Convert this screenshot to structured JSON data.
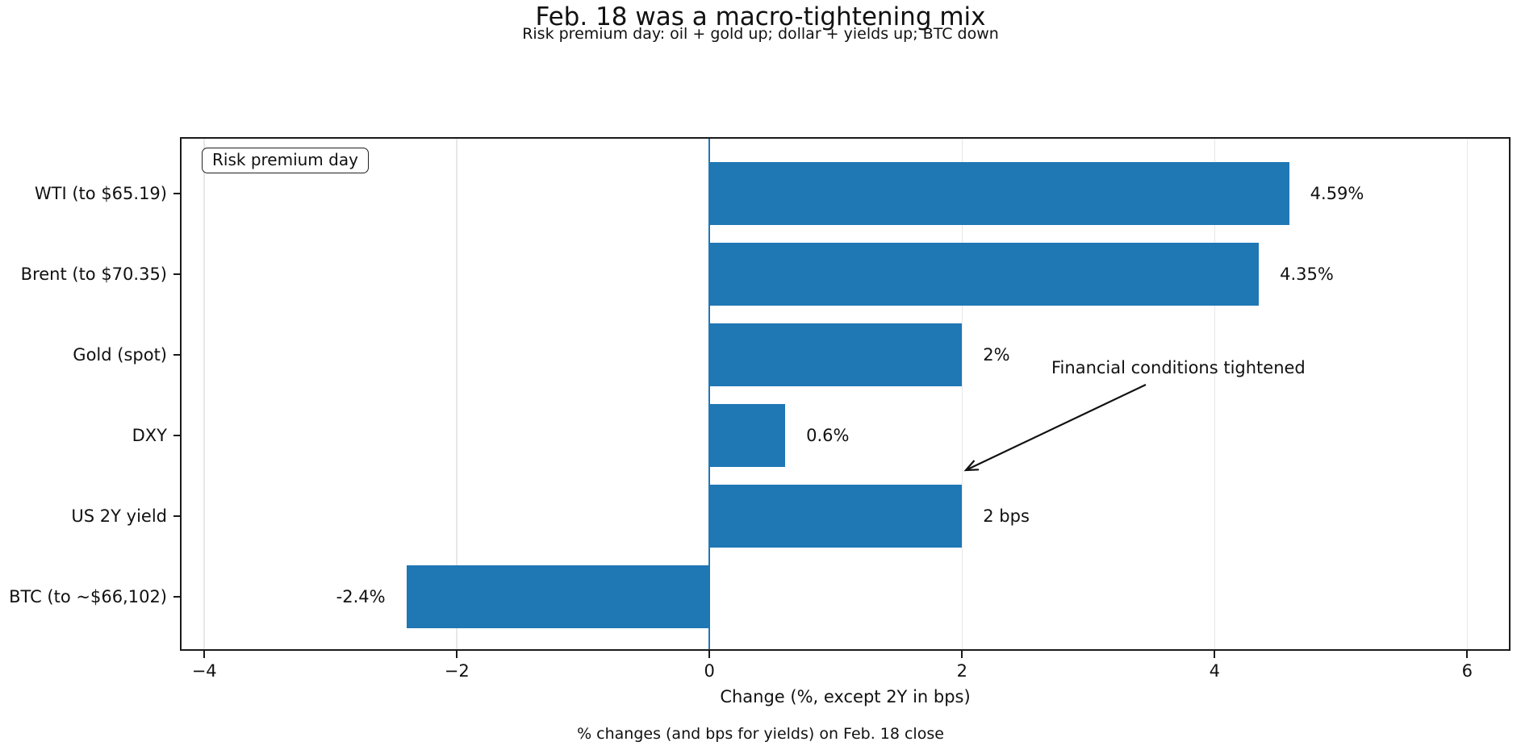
{
  "title": "Feb. 18 was a macro-tightening mix",
  "subtitle": "Risk premium day: oil + gold up; dollar + yields up; BTC down",
  "legend": {
    "label": "Risk premium day"
  },
  "annotation": {
    "text": "Financial conditions tightened"
  },
  "xlabel": "Change (%, except 2Y in bps)",
  "footer": "% changes (and bps for yields) on Feb. 18 close",
  "colors": {
    "bar": "#1f77b4",
    "zero_line": "#1f77b4",
    "grid": "#e7e7e7",
    "text": "#111111",
    "spine": "#1a1a1a"
  },
  "chart_data": {
    "type": "bar",
    "orientation": "horizontal",
    "title": "Feb. 18 was a macro-tightening mix",
    "subtitle": "Risk premium day: oil + gold up; dollar + yields up; BTC down",
    "categories": [
      "WTI (to $65.19)",
      "Brent (to $70.35)",
      "Gold (spot)",
      "DXY",
      "US 2Y yield",
      "BTC (to ~$66,102)"
    ],
    "values": [
      4.59,
      4.35,
      2.0,
      0.6,
      2.0,
      -2.4
    ],
    "value_labels": [
      "4.59%",
      "4.35%",
      "2%",
      "0.6%",
      "2 bps",
      "-2.4%"
    ],
    "xlabel": "Change (%, except 2Y in bps)",
    "caption": "% changes (and bps for yields) on Feb. 18 close",
    "xticks": [
      -4,
      -2,
      0,
      2,
      4,
      6
    ],
    "xtick_labels": [
      "−4",
      "−2",
      "0",
      "2",
      "4",
      "6"
    ],
    "xlim": [
      -4.18,
      6.33
    ],
    "grid": true,
    "zero_line": 0,
    "legend": [
      "Risk premium day"
    ],
    "annotation": {
      "text": "Financial conditions tightened",
      "points_to": "end of US 2Y yield bar at +2"
    }
  }
}
